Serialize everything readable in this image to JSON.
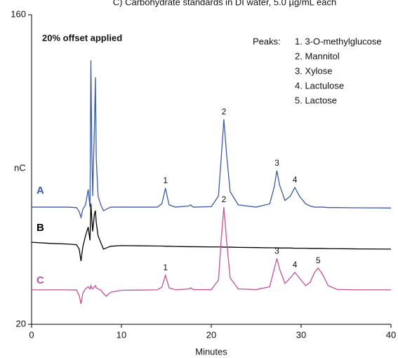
{
  "chart_data": {
    "type": "line",
    "title": "C) Carbohydrate standards in DI water, 5.0 µg/mL each",
    "subtitle": "20% offset applied",
    "y_label": "nC",
    "x_label": "Minutes",
    "legend_title": "Peaks:",
    "legend_items": [
      "1. 3-O-methylglucose",
      "2. Mannitol",
      "3. Xylose",
      "4. Lactulose",
      "5. Lactose"
    ],
    "xlim": [
      0,
      40
    ],
    "xticks": [
      0,
      10,
      20,
      30,
      40
    ],
    "ylim": [
      20,
      160
    ],
    "yticks": [
      20,
      160
    ],
    "x": [
      0,
      2,
      4,
      5,
      5.3,
      5.5,
      5.7,
      6,
      6.3,
      6.5,
      6.6,
      6.7,
      6.8,
      6.9,
      7.0,
      7.1,
      7.2,
      7.4,
      7.7,
      8.0,
      8.3,
      8.8,
      10,
      12,
      14,
      14.5,
      14.9,
      15.3,
      16,
      17.5,
      17.7,
      18,
      20,
      20.8,
      21.1,
      21.4,
      21.7,
      22.1,
      23,
      25,
      26.5,
      27,
      27.3,
      27.6,
      28.2,
      28.8,
      29.3,
      29.8,
      30.5,
      31,
      31.5,
      31.9,
      32.4,
      33,
      34,
      36,
      40
    ],
    "series": [
      {
        "name": "A",
        "color": "#3b5ba5",
        "values": [
          73,
          73,
          73,
          72.8,
          71,
          68.3,
          72,
          74,
          81,
          73,
          139.4,
          100,
          78,
          95,
          110,
          131.7,
          95,
          78,
          74,
          71.4,
          72,
          73,
          73,
          73,
          73,
          74.5,
          81.6,
          74,
          73,
          73.5,
          74,
          73,
          73.2,
          78,
          95,
          112.7,
          97,
          80,
          74,
          73,
          74.5,
          82,
          89.5,
          83,
          76,
          78,
          81.9,
          78,
          74.5,
          73.5,
          73,
          73,
          73,
          72.8,
          72.8,
          72.7,
          72.6
        ]
      },
      {
        "name": "B",
        "color": "#000000",
        "values": [
          57.1,
          56.6,
          56.3,
          56,
          54,
          48.6,
          55,
          60,
          64,
          58,
          74.6,
          68,
          62,
          66,
          70,
          71.4,
          66,
          60,
          57,
          54,
          54.5,
          55.3,
          55.6,
          55.5,
          55.4,
          55.4,
          55.3,
          55.3,
          55.2,
          55.1,
          55.1,
          55.1,
          55,
          55,
          55,
          54.9,
          54.9,
          54.9,
          54.8,
          54.7,
          54.6,
          54.6,
          54.6,
          54.5,
          54.5,
          54.5,
          54.4,
          54.4,
          54.4,
          54.3,
          54.3,
          54.3,
          54.3,
          54.2,
          54.2,
          54.1,
          54
        ]
      },
      {
        "name": "C",
        "color": "#c2509b",
        "values": [
          35.6,
          35.6,
          35.6,
          35.5,
          33,
          29.2,
          34,
          36,
          37,
          36,
          37.5,
          36.5,
          36,
          36.5,
          37,
          37.5,
          36.5,
          36,
          35.5,
          34,
          32.7,
          34.5,
          35.4,
          35.5,
          35.6,
          36.8,
          42.2,
          36.5,
          35.6,
          36,
          36.5,
          35.7,
          35.7,
          40,
          58,
          73,
          58,
          41,
          36,
          35.7,
          37,
          45,
          49.8,
          45,
          38.5,
          41,
          43.5,
          41,
          37.5,
          39,
          43.5,
          45.4,
          42.5,
          37.5,
          35.8,
          35.6,
          35.6
        ]
      }
    ],
    "annotations": [
      {
        "text": "1",
        "x": 14.9,
        "y": 81.6
      },
      {
        "text": "2",
        "x": 21.4,
        "y": 112.7
      },
      {
        "text": "3",
        "x": 27.3,
        "y": 89.5
      },
      {
        "text": "4",
        "x": 29.3,
        "y": 81.9
      },
      {
        "text": "1",
        "x": 14.9,
        "y": 42.2
      },
      {
        "text": "2",
        "x": 21.4,
        "y": 73
      },
      {
        "text": "3",
        "x": 27.3,
        "y": 49.8
      },
      {
        "text": "4",
        "x": 29.3,
        "y": 43.5
      },
      {
        "text": "5",
        "x": 31.9,
        "y": 45.4
      }
    ]
  }
}
